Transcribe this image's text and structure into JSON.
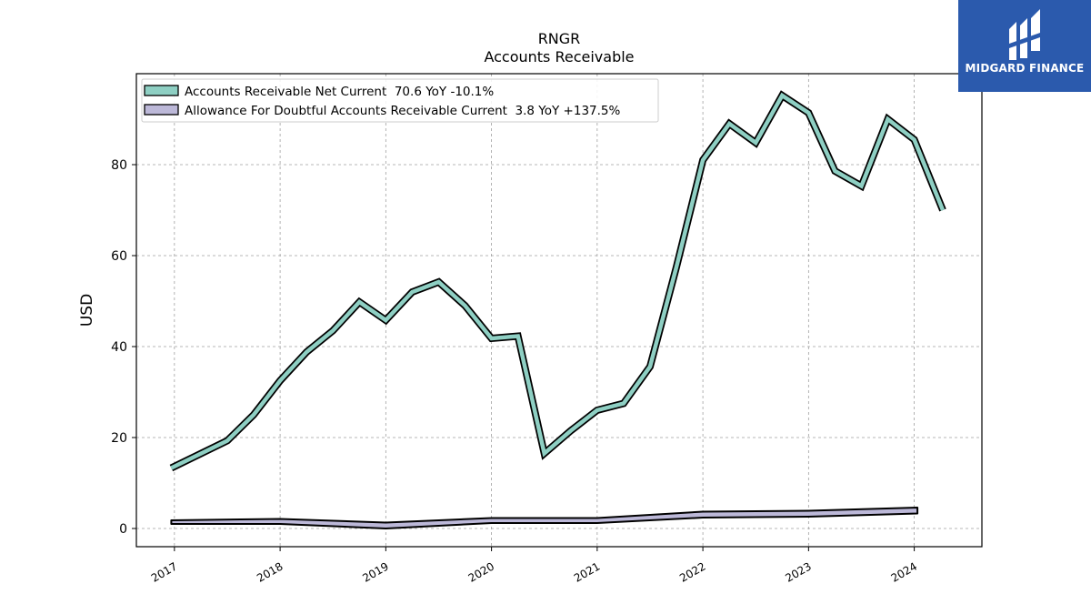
{
  "logo": {
    "text": "MIDGARD FINANCE",
    "background": "#2b5aad",
    "icon": "midgard-logo-icon"
  },
  "chart_data": {
    "type": "line",
    "title": "RNGR",
    "subtitle": "Accounts Receivable",
    "ylabel": "USD",
    "xlabel": "",
    "ylim": [
      -4,
      100
    ],
    "xlim": [
      2016.64,
      2024.64
    ],
    "yticks": [
      0,
      20,
      40,
      60,
      80
    ],
    "xticks": [
      2017,
      2018,
      2019,
      2020,
      2021,
      2022,
      2023,
      2024
    ],
    "xtick_labels": [
      "2017",
      "2018",
      "2019",
      "2020",
      "2021",
      "2022",
      "2023",
      "2024"
    ],
    "grid": true,
    "legend_position": "top-left",
    "series": [
      {
        "name": "Accounts Receivable Net Current",
        "legend": "Accounts Receivable Net Current  70.6 YoY -10.1%",
        "style": "line",
        "color": "#8ecfc3",
        "x": [
          2016.97,
          2017.5,
          2017.75,
          2018.0,
          2018.25,
          2018.5,
          2018.75,
          2019.0,
          2019.25,
          2019.5,
          2019.75,
          2020.0,
          2020.25,
          2020.5,
          2020.75,
          2021.0,
          2021.25,
          2021.5,
          2021.75,
          2022.0,
          2022.25,
          2022.5,
          2022.75,
          2023.0,
          2023.25,
          2023.5,
          2023.75,
          2024.0,
          2024.27
        ],
        "values": [
          13.3,
          19.3,
          25,
          32.5,
          38.8,
          43.5,
          49.8,
          45.8,
          52,
          54.2,
          49,
          41.8,
          42.3,
          16.5,
          21.5,
          26,
          27.5,
          35.6,
          57.5,
          81,
          89,
          84.8,
          95.2,
          91.4,
          78.6,
          75.3,
          90,
          85.5,
          70
        ]
      },
      {
        "name": "Allowance For Doubtful Accounts Receivable Current",
        "legend": "Allowance For Doubtful Accounts Receivable Current  3.8 YoY +137.5%",
        "style": "band",
        "color": "#bcb8d8",
        "x": [
          2016.97,
          2018.0,
          2019.0,
          2020.0,
          2021.0,
          2022.0,
          2023.0,
          2024.03
        ],
        "upper": [
          1.8,
          2.1,
          1.3,
          2.3,
          2.3,
          3.7,
          3.9,
          4.6
        ],
        "lower": [
          1.0,
          1.0,
          0.0,
          1.2,
          1.2,
          2.4,
          2.6,
          3.3
        ]
      }
    ]
  }
}
